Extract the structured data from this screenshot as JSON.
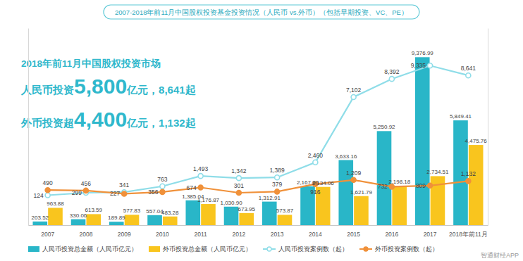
{
  "chart_data": {
    "type": "bar",
    "title": "2007-2018年前11月中国股权投资基金投资情况（人民币 vs.外币）（包括早期投资、VC、PE）",
    "annotations": [
      [
        "2018年前11月中国股权投资市场"
      ],
      [
        "人民币投资",
        "5,800",
        "亿元，8,641起"
      ],
      [
        "外币投资超",
        "4,400",
        "亿元，1,132起"
      ]
    ],
    "watermark": "智通财经APP",
    "categories": [
      "2007",
      "2008",
      "2009",
      "2010",
      "2011",
      "2012",
      "2013",
      "2014",
      "2015",
      "2016",
      "2017",
      "2018年前11月"
    ],
    "series": [
      {
        "name": "人民币投资总金额（人民币亿元）",
        "type": "bar",
        "color": "#29b6c8",
        "values": [
          203.52,
          330.06,
          189.89,
          557.04,
          1385.04,
          1030.9,
          1312.91,
          2167.0,
          3633.16,
          5250.92,
          9376.99,
          5849.41
        ],
        "value_labels": [
          "203.52",
          "330.06",
          "189.89",
          "557.04",
          "1,385.04",
          "1,030.90",
          "1,312.91",
          "2,167.00",
          "3,633.16",
          "5,250.92",
          "9,376.99",
          "5,849.41"
        ]
      },
      {
        "name": "外币投资总金额（人民币亿元）",
        "type": "bar",
        "color": "#f9c51e",
        "values": [
          963.88,
          613.59,
          577.83,
          483.28,
          1176.87,
          673.95,
          573.87,
          2134.06,
          1621.79,
          2198.18,
          2734.51,
          4475.76
        ],
        "value_labels": [
          "963.88",
          "613.59",
          "577.83",
          "483.28",
          "1,176.87",
          "673.95",
          "573.87",
          "2,134.06",
          "1,621.79",
          "2,198.18",
          "2,734.51",
          "4,475.76"
        ]
      },
      {
        "name": "人民币投资案例数（起）",
        "type": "line",
        "axis": "y2",
        "color": "#8fdde8",
        "marker": "hollow-circle",
        "values": [
          124,
          299,
          341,
          763,
          1493,
          1342,
          1389,
          2460,
          7102,
          8392,
          9335,
          8641
        ],
        "value_labels": [
          "124",
          "299",
          "341",
          "763",
          "1,493",
          "1,342",
          "1,389",
          "2,460",
          "7,102",
          "8,392",
          "9,335",
          "8,641"
        ]
      },
      {
        "name": "外币投资案例数（起）",
        "type": "line",
        "axis": "y2",
        "color": "#f0913a",
        "marker": "circle",
        "values": [
          490,
          456,
          227,
          356,
          674,
          301,
          379,
          916,
          1209,
          732,
          809,
          1132
        ],
        "value_labels": [
          "490",
          "456",
          "227",
          "356",
          "674",
          "301",
          "379",
          "916",
          "1,209",
          "732",
          "809",
          "1,132"
        ]
      }
    ],
    "ylim": [
      0,
      11000
    ],
    "y2lim": [
      -2000,
      12000
    ],
    "data_labels": true,
    "legend": "bottom",
    "grid": false,
    "tick_labels": "x"
  }
}
